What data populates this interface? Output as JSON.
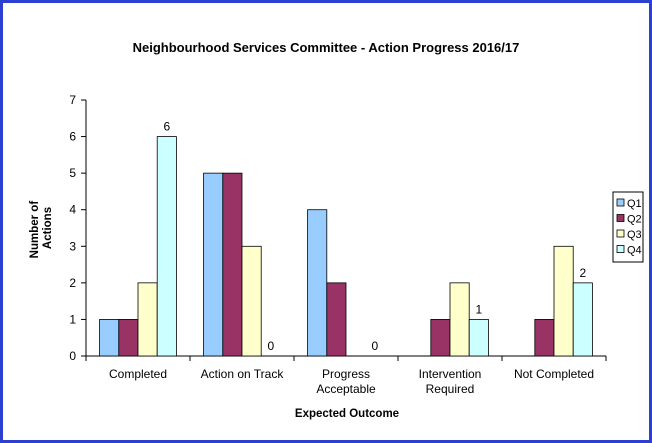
{
  "chart_data": {
    "type": "bar",
    "title": "Neighbourhood Services Committee - Action Progress 2016/17",
    "xlabel": "Expected Outcome",
    "ylabel_lines": [
      "Number of",
      "Actions"
    ],
    "ylim": [
      0,
      7
    ],
    "yticks": [
      0,
      1,
      2,
      3,
      4,
      5,
      6,
      7
    ],
    "categories": [
      [
        "Completed"
      ],
      [
        "Action on Track"
      ],
      [
        "Progress",
        "Acceptable"
      ],
      [
        "Intervention",
        "Required"
      ],
      [
        "Not Completed"
      ]
    ],
    "series": [
      {
        "name": "Q1",
        "color": "#99ccff",
        "values": [
          1,
          5,
          4,
          0,
          0
        ]
      },
      {
        "name": "Q2",
        "color": "#993366",
        "values": [
          1,
          5,
          2,
          1,
          1
        ]
      },
      {
        "name": "Q3",
        "color": "#ffffcc",
        "values": [
          2,
          3,
          0,
          2,
          3
        ]
      },
      {
        "name": "Q4",
        "color": "#ccffff",
        "values": [
          6,
          0,
          0,
          1,
          2
        ]
      }
    ],
    "data_labels_series": "Q4",
    "grid": false,
    "legend": "right"
  }
}
